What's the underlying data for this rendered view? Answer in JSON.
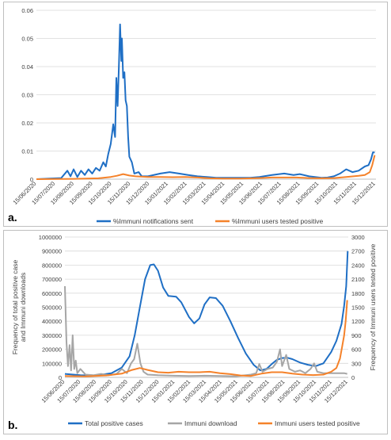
{
  "chart_data": [
    {
      "type": "line",
      "panel_label": "a.",
      "title": "",
      "xlabel": "",
      "ylabel": "",
      "ylim": [
        0,
        0.06
      ],
      "yticks": [
        "0",
        "0.01",
        "0.02",
        "0.03",
        "0.04",
        "0.05",
        "0.06"
      ],
      "yvalues": [
        0,
        0.01,
        0.02,
        0.03,
        0.04,
        0.05,
        0.06
      ],
      "xtick_labels": [
        "15/06/2020",
        "15/07/2020",
        "15/08/2020",
        "15/09/2020",
        "15/10/2020",
        "15/11/2020",
        "15/12/2020",
        "15/01/2021",
        "15/02/2021",
        "15/03/2021",
        "15/04/2021",
        "15/05/2021",
        "15/06/2021",
        "15/07/2021",
        "15/08/2021",
        "15/09/2021",
        "15/10/2021",
        "15/11/2021",
        "15/12/2021"
      ],
      "legend": [
        "%Immuni notifications sent",
        "%Immuni users tested positive"
      ],
      "legend_position": "bottom",
      "grid": "horizontal",
      "colors": [
        "#1f6fc5",
        "#f5822a"
      ],
      "series": [
        {
          "name": "%Immuni notifications sent",
          "points": [
            [
              0,
              0
            ],
            [
              20,
              0.0002
            ],
            [
              40,
              0.0004
            ],
            [
              50,
              0.003
            ],
            [
              55,
              0.001
            ],
            [
              60,
              0.0035
            ],
            [
              66,
              0.0008
            ],
            [
              72,
              0.003
            ],
            [
              78,
              0.0015
            ],
            [
              84,
              0.0035
            ],
            [
              90,
              0.002
            ],
            [
              96,
              0.004
            ],
            [
              102,
              0.003
            ],
            [
              108,
              0.006
            ],
            [
              112,
              0.0045
            ],
            [
              116,
              0.009
            ],
            [
              120,
              0.0125
            ],
            [
              124,
              0.0195
            ],
            [
              127,
              0.015
            ],
            [
              129,
              0.036
            ],
            [
              131,
              0.026
            ],
            [
              133,
              0.039
            ],
            [
              135,
              0.055
            ],
            [
              137,
              0.042
            ],
            [
              138,
              0.05
            ],
            [
              140,
              0.036
            ],
            [
              142,
              0.038
            ],
            [
              144,
              0.028
            ],
            [
              146,
              0.026
            ],
            [
              148,
              0.015
            ],
            [
              150,
              0.008
            ],
            [
              154,
              0.006
            ],
            [
              158,
              0.002
            ],
            [
              165,
              0.0025
            ],
            [
              170,
              0.001
            ],
            [
              180,
              0.001
            ],
            [
              200,
              0.002
            ],
            [
              215,
              0.0025
            ],
            [
              230,
              0.002
            ],
            [
              245,
              0.0015
            ],
            [
              260,
              0.001
            ],
            [
              275,
              0.0008
            ],
            [
              290,
              0.0005
            ],
            [
              300,
              0.0005
            ],
            [
              310,
              0.0005
            ],
            [
              330,
              0.0005
            ],
            [
              345,
              0.0005
            ],
            [
              360,
              0.0008
            ],
            [
              380,
              0.0015
            ],
            [
              400,
              0.002
            ],
            [
              415,
              0.0015
            ],
            [
              425,
              0.0018
            ],
            [
              440,
              0.001
            ],
            [
              460,
              0.0005
            ],
            [
              470,
              0.0006
            ],
            [
              480,
              0.001
            ],
            [
              490,
              0.002
            ],
            [
              500,
              0.0035
            ],
            [
              510,
              0.0025
            ],
            [
              520,
              0.003
            ],
            [
              530,
              0.0045
            ],
            [
              536,
              0.005
            ],
            [
              540,
              0.007
            ],
            [
              543,
              0.0095
            ],
            [
              546,
              0.0095
            ]
          ]
        },
        {
          "name": "%Immuni users tested positive",
          "points": [
            [
              0,
              0
            ],
            [
              60,
              0.0001
            ],
            [
              100,
              0.0003
            ],
            [
              120,
              0.0008
            ],
            [
              130,
              0.0012
            ],
            [
              140,
              0.0018
            ],
            [
              150,
              0.0013
            ],
            [
              160,
              0.001
            ],
            [
              180,
              0.0008
            ],
            [
              200,
              0.0008
            ],
            [
              220,
              0.0007
            ],
            [
              240,
              0.0008
            ],
            [
              260,
              0.0006
            ],
            [
              280,
              0.0003
            ],
            [
              300,
              0.0002
            ],
            [
              330,
              0.0002
            ],
            [
              360,
              0.0004
            ],
            [
              380,
              0.0006
            ],
            [
              400,
              0.0006
            ],
            [
              420,
              0.0006
            ],
            [
              440,
              0.0004
            ],
            [
              460,
              0.0003
            ],
            [
              480,
              0.0004
            ],
            [
              500,
              0.0008
            ],
            [
              520,
              0.0012
            ],
            [
              530,
              0.0015
            ],
            [
              538,
              0.0025
            ],
            [
              542,
              0.005
            ],
            [
              546,
              0.0085
            ]
          ]
        }
      ]
    },
    {
      "type": "line",
      "panel_label": "b.",
      "title": "",
      "xlabel": "",
      "ylabel": "Frequency of total positive case and Immuni downloads",
      "y2label": "Frequency of Immuni users tested positive",
      "ylim": [
        0,
        1000000
      ],
      "y2lim": [
        0,
        3000
      ],
      "yticks": [
        "0",
        "100000",
        "200000",
        "300000",
        "400000",
        "500000",
        "600000",
        "700000",
        "800000",
        "900000",
        "1000000"
      ],
      "yvalues": [
        0,
        100000,
        200000,
        300000,
        400000,
        500000,
        600000,
        700000,
        800000,
        900000,
        1000000
      ],
      "y2ticks": [
        "0",
        "300",
        "600",
        "900",
        "1200",
        "1500",
        "1800",
        "2100",
        "2400",
        "2700",
        "3000"
      ],
      "y2values": [
        0,
        300,
        600,
        900,
        1200,
        1500,
        1800,
        2100,
        2400,
        2700,
        3000
      ],
      "xtick_labels": [
        "15/06/2020",
        "15/07/2020",
        "15/08/2020",
        "15/09/2020",
        "15/10/2020",
        "15/11/2020",
        "15/12/2020",
        "15/01/2021",
        "15/02/2021",
        "15/03/2021",
        "15/04/2021",
        "15/05/2021",
        "15/06/2021",
        "15/07/2021",
        "15/08/2021",
        "15/09/2021",
        "15/10/2021",
        "15/11/2021",
        "15/12/2021"
      ],
      "legend": [
        "Total positive cases",
        "Immuni download",
        "Immuni users tested positive"
      ],
      "legend_position": "bottom",
      "grid": "horizontal",
      "colors": [
        "#1f6fc5",
        "#a6a6a6",
        "#f5822a"
      ],
      "series": [
        {
          "name": "Total positive cases",
          "axis": "left",
          "points": [
            [
              0,
              25000
            ],
            [
              30,
              15000
            ],
            [
              60,
              13000
            ],
            [
              90,
              30000
            ],
            [
              110,
              70000
            ],
            [
              125,
              150000
            ],
            [
              135,
              300000
            ],
            [
              145,
              500000
            ],
            [
              155,
              700000
            ],
            [
              165,
              800000
            ],
            [
              172,
              805000
            ],
            [
              180,
              760000
            ],
            [
              190,
              640000
            ],
            [
              200,
              580000
            ],
            [
              215,
              575000
            ],
            [
              225,
              535000
            ],
            [
              240,
              430000
            ],
            [
              250,
              385000
            ],
            [
              260,
              420000
            ],
            [
              270,
              520000
            ],
            [
              280,
              570000
            ],
            [
              292,
              565000
            ],
            [
              305,
              510000
            ],
            [
              320,
              400000
            ],
            [
              335,
              280000
            ],
            [
              350,
              170000
            ],
            [
              365,
              90000
            ],
            [
              378,
              50000
            ],
            [
              390,
              60000
            ],
            [
              400,
              95000
            ],
            [
              410,
              125000
            ],
            [
              420,
              138000
            ],
            [
              430,
              140000
            ],
            [
              440,
              130000
            ],
            [
              455,
              105000
            ],
            [
              470,
              90000
            ],
            [
              485,
              80000
            ],
            [
              500,
              100000
            ],
            [
              515,
              180000
            ],
            [
              525,
              260000
            ],
            [
              535,
              380000
            ],
            [
              540,
              510000
            ],
            [
              544,
              650000
            ],
            [
              547,
              900000
            ]
          ]
        },
        {
          "name": "Immuni download",
          "axis": "left",
          "points": [
            [
              0,
              650000
            ],
            [
              3,
              250000
            ],
            [
              6,
              80000
            ],
            [
              9,
              230000
            ],
            [
              12,
              50000
            ],
            [
              15,
              300000
            ],
            [
              18,
              60000
            ],
            [
              21,
              120000
            ],
            [
              24,
              30000
            ],
            [
              30,
              60000
            ],
            [
              40,
              20000
            ],
            [
              55,
              15000
            ],
            [
              70,
              25000
            ],
            [
              85,
              15000
            ],
            [
              100,
              25000
            ],
            [
              110,
              60000
            ],
            [
              120,
              30000
            ],
            [
              128,
              100000
            ],
            [
              134,
              130000
            ],
            [
              140,
              240000
            ],
            [
              146,
              100000
            ],
            [
              152,
              40000
            ],
            [
              160,
              20000
            ],
            [
              180,
              15000
            ],
            [
              210,
              12000
            ],
            [
              240,
              10000
            ],
            [
              270,
              12000
            ],
            [
              300,
              10000
            ],
            [
              330,
              8000
            ],
            [
              350,
              15000
            ],
            [
              360,
              20000
            ],
            [
              370,
              30000
            ],
            [
              376,
              95000
            ],
            [
              382,
              40000
            ],
            [
              392,
              60000
            ],
            [
              402,
              70000
            ],
            [
              410,
              110000
            ],
            [
              416,
              200000
            ],
            [
              420,
              80000
            ],
            [
              428,
              160000
            ],
            [
              434,
              60000
            ],
            [
              445,
              40000
            ],
            [
              455,
              50000
            ],
            [
              465,
              30000
            ],
            [
              475,
              60000
            ],
            [
              482,
              100000
            ],
            [
              488,
              40000
            ],
            [
              500,
              30000
            ],
            [
              520,
              30000
            ],
            [
              540,
              30000
            ],
            [
              546,
              25000
            ]
          ]
        },
        {
          "name": "Immuni users tested positive",
          "axis": "right",
          "points": [
            [
              0,
              30
            ],
            [
              40,
              20
            ],
            [
              80,
              40
            ],
            [
              110,
              80
            ],
            [
              130,
              160
            ],
            [
              145,
              200
            ],
            [
              160,
              160
            ],
            [
              180,
              110
            ],
            [
              200,
              100
            ],
            [
              220,
              120
            ],
            [
              240,
              110
            ],
            [
              260,
              110
            ],
            [
              280,
              120
            ],
            [
              300,
              90
            ],
            [
              320,
              70
            ],
            [
              340,
              40
            ],
            [
              360,
              30
            ],
            [
              380,
              80
            ],
            [
              400,
              110
            ],
            [
              420,
              110
            ],
            [
              440,
              80
            ],
            [
              460,
              60
            ],
            [
              480,
              50
            ],
            [
              500,
              60
            ],
            [
              515,
              120
            ],
            [
              525,
              200
            ],
            [
              532,
              400
            ],
            [
              536,
              650
            ],
            [
              540,
              900
            ],
            [
              543,
              1200
            ],
            [
              546,
              1650
            ]
          ]
        }
      ]
    }
  ]
}
